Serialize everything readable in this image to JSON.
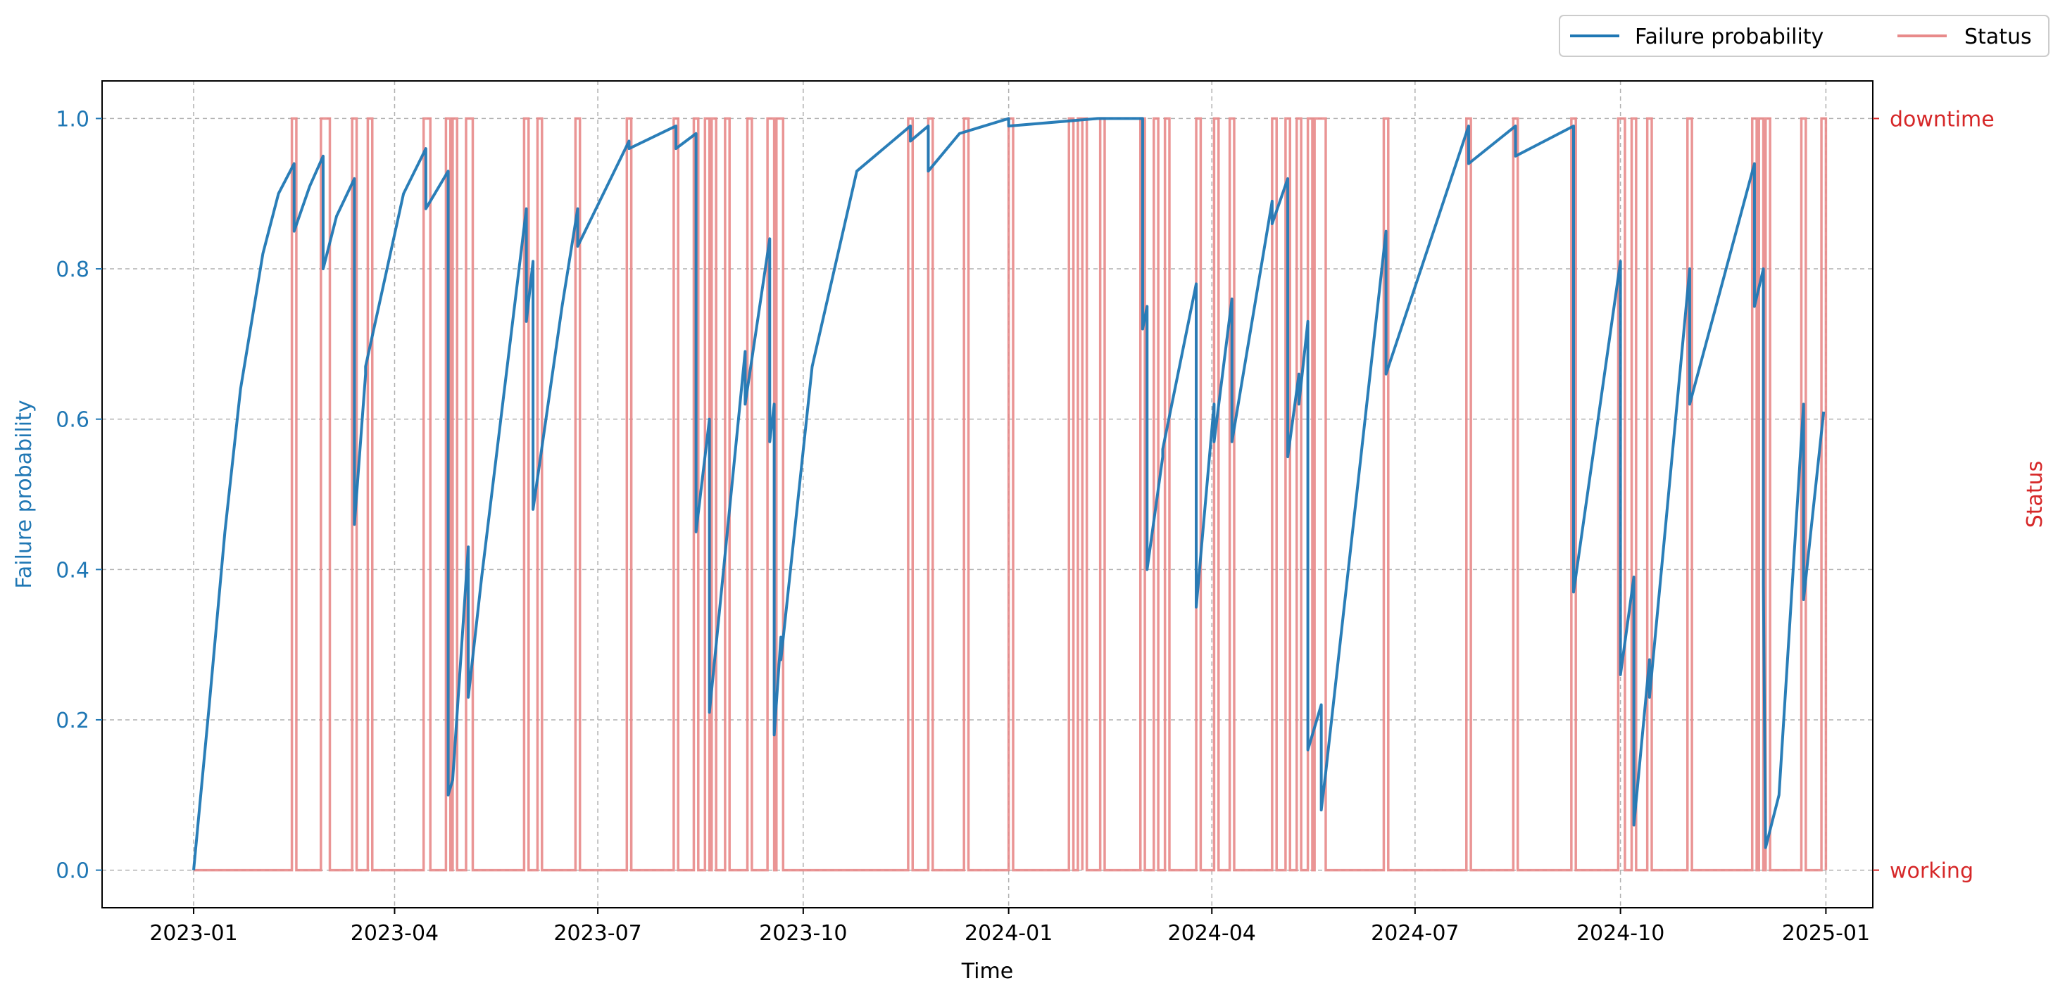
{
  "chart_data": {
    "type": "line",
    "xlabel": "Time",
    "ylabel": "Failure probability",
    "ylabel_right": "Status",
    "x_range": [
      "2022-11-21",
      "2025-01-22"
    ],
    "ylim": [
      -0.05,
      1.05
    ],
    "x_ticks": [
      "2023-01",
      "2023-04",
      "2023-07",
      "2023-10",
      "2024-01",
      "2024-04",
      "2024-07",
      "2024-10",
      "2025-01"
    ],
    "y_ticks": [
      0.0,
      0.2,
      0.4,
      0.6,
      0.8,
      1.0
    ],
    "y_tick_labels": [
      "0.0",
      "0.2",
      "0.4",
      "0.6",
      "0.8",
      "1.0"
    ],
    "right_ticks": [
      "working",
      "downtime"
    ],
    "grid": true,
    "legend_placement": "top-right, above plot",
    "colors": {
      "failure": "#1f77b4",
      "status": "#e88a8a",
      "right_axis": "#d62728"
    },
    "series": [
      {
        "name": "Failure probability",
        "x": [
          "2023-01-01",
          "2023-01-08",
          "2023-01-15",
          "2023-01-22",
          "2023-02-01",
          "2023-02-08",
          "2023-02-15",
          "2023-02-15",
          "2023-02-22",
          "2023-02-28",
          "2023-02-28",
          "2023-03-06",
          "2023-03-14",
          "2023-03-14",
          "2023-03-19",
          "2023-03-19",
          "2023-04-05",
          "2023-04-15",
          "2023-04-15",
          "2023-04-25",
          "2023-04-25",
          "2023-04-27",
          "2023-04-27",
          "2023-05-04",
          "2023-05-04",
          "2023-05-10",
          "2023-05-30",
          "2023-05-30",
          "2023-06-02",
          "2023-06-02",
          "2023-06-15",
          "2023-06-22",
          "2023-06-22",
          "2023-07-15",
          "2023-07-15",
          "2023-08-05",
          "2023-08-05",
          "2023-08-14",
          "2023-08-14",
          "2023-08-20",
          "2023-08-20",
          "2023-08-23",
          "2023-08-23",
          "2023-09-05",
          "2023-09-05",
          "2023-09-16",
          "2023-09-16",
          "2023-09-18",
          "2023-09-18",
          "2023-09-21",
          "2023-09-21",
          "2023-10-05",
          "2023-10-25",
          "2023-11-18",
          "2023-11-18",
          "2023-11-26",
          "2023-11-26",
          "2023-12-10",
          "2024-01-01",
          "2024-01-01",
          "2024-02-10",
          "2024-03-01",
          "2024-03-01",
          "2024-03-03",
          "2024-03-03",
          "2024-03-10",
          "2024-03-10",
          "2024-03-25",
          "2024-03-25",
          "2024-04-02",
          "2024-04-02",
          "2024-04-10",
          "2024-04-10",
          "2024-04-28",
          "2024-04-28",
          "2024-05-05",
          "2024-05-05",
          "2024-05-10",
          "2024-05-10",
          "2024-05-14",
          "2024-05-14",
          "2024-05-20",
          "2024-05-20",
          "2024-05-22",
          "2024-05-22",
          "2024-06-18",
          "2024-06-18",
          "2024-07-25",
          "2024-07-25",
          "2024-08-15",
          "2024-08-15",
          "2024-09-10",
          "2024-09-10",
          "2024-10-01",
          "2024-10-01",
          "2024-10-07",
          "2024-10-07",
          "2024-10-14",
          "2024-10-14",
          "2024-11-01",
          "2024-11-01",
          "2024-11-30",
          "2024-11-30",
          "2024-12-04",
          "2024-12-04",
          "2024-12-05",
          "2024-12-11",
          "2024-12-22",
          "2024-12-22",
          "2024-12-31"
        ],
        "values": [
          0.0,
          0.22,
          0.45,
          0.64,
          0.82,
          0.9,
          0.94,
          0.85,
          0.91,
          0.95,
          0.8,
          0.87,
          0.92,
          0.46,
          0.66,
          0.67,
          0.9,
          0.96,
          0.88,
          0.93,
          0.1,
          0.12,
          0.12,
          0.43,
          0.23,
          0.39,
          0.88,
          0.73,
          0.81,
          0.48,
          0.75,
          0.88,
          0.83,
          0.97,
          0.96,
          0.99,
          0.96,
          0.98,
          0.45,
          0.6,
          0.21,
          0.3,
          0.3,
          0.69,
          0.62,
          0.84,
          0.57,
          0.62,
          0.18,
          0.31,
          0.28,
          0.67,
          0.93,
          0.99,
          0.97,
          0.99,
          0.93,
          0.98,
          1.0,
          0.99,
          1.0,
          1.0,
          0.72,
          0.75,
          0.4,
          0.55,
          0.56,
          0.78,
          0.35,
          0.62,
          0.57,
          0.76,
          0.57,
          0.89,
          0.86,
          0.92,
          0.55,
          0.66,
          0.62,
          0.73,
          0.16,
          0.22,
          0.08,
          0.13,
          0.13,
          0.85,
          0.66,
          0.99,
          0.94,
          0.99,
          0.95,
          0.99,
          0.37,
          0.81,
          0.26,
          0.39,
          0.06,
          0.28,
          0.23,
          0.8,
          0.62,
          0.94,
          0.75,
          0.8,
          0.38,
          0.03,
          0.1,
          0.62,
          0.36,
          0.61
        ]
      },
      {
        "name": "Status",
        "downtime_intervals": [
          [
            "2023-02-14",
            "2023-02-16"
          ],
          [
            "2023-02-27",
            "2023-03-03"
          ],
          [
            "2023-03-13",
            "2023-03-15"
          ],
          [
            "2023-03-20",
            "2023-03-22"
          ],
          [
            "2023-04-14",
            "2023-04-17"
          ],
          [
            "2023-04-24",
            "2023-04-26"
          ],
          [
            "2023-04-27",
            "2023-04-29"
          ],
          [
            "2023-05-03",
            "2023-05-06"
          ],
          [
            "2023-05-29",
            "2023-05-31"
          ],
          [
            "2023-06-04",
            "2023-06-06"
          ],
          [
            "2023-06-21",
            "2023-06-23"
          ],
          [
            "2023-07-14",
            "2023-07-16"
          ],
          [
            "2023-08-04",
            "2023-08-06"
          ],
          [
            "2023-08-13",
            "2023-08-15"
          ],
          [
            "2023-08-18",
            "2023-08-20"
          ],
          [
            "2023-08-21",
            "2023-08-23"
          ],
          [
            "2023-08-27",
            "2023-08-29"
          ],
          [
            "2023-09-06",
            "2023-09-08"
          ],
          [
            "2023-09-15",
            "2023-09-18"
          ],
          [
            "2023-09-19",
            "2023-09-22"
          ],
          [
            "2023-11-17",
            "2023-11-19"
          ],
          [
            "2023-11-26",
            "2023-11-28"
          ],
          [
            "2023-12-12",
            "2023-12-14"
          ],
          [
            "2024-01-01",
            "2024-01-03"
          ],
          [
            "2024-01-28",
            "2024-01-30"
          ],
          [
            "2024-02-01",
            "2024-02-03"
          ],
          [
            "2024-02-03",
            "2024-02-05"
          ],
          [
            "2024-02-11",
            "2024-02-13"
          ],
          [
            "2024-02-29",
            "2024-03-02"
          ],
          [
            "2024-03-06",
            "2024-03-08"
          ],
          [
            "2024-03-11",
            "2024-03-13"
          ],
          [
            "2024-03-25",
            "2024-03-27"
          ],
          [
            "2024-04-02",
            "2024-04-04"
          ],
          [
            "2024-04-09",
            "2024-04-11"
          ],
          [
            "2024-04-28",
            "2024-04-30"
          ],
          [
            "2024-05-04",
            "2024-05-06"
          ],
          [
            "2024-05-09",
            "2024-05-11"
          ],
          [
            "2024-05-14",
            "2024-05-16"
          ],
          [
            "2024-05-17",
            "2024-05-22"
          ],
          [
            "2024-06-17",
            "2024-06-19"
          ],
          [
            "2024-07-24",
            "2024-07-26"
          ],
          [
            "2024-08-14",
            "2024-08-16"
          ],
          [
            "2024-09-09",
            "2024-09-11"
          ],
          [
            "2024-09-30",
            "2024-10-03"
          ],
          [
            "2024-10-06",
            "2024-10-08"
          ],
          [
            "2024-10-13",
            "2024-10-15"
          ],
          [
            "2024-10-31",
            "2024-11-02"
          ],
          [
            "2024-11-29",
            "2024-12-01"
          ],
          [
            "2024-12-02",
            "2024-12-04"
          ],
          [
            "2024-12-05",
            "2024-12-07"
          ],
          [
            "2024-12-21",
            "2024-12-23"
          ],
          [
            "2024-12-30",
            "2025-01-01"
          ]
        ]
      }
    ]
  }
}
